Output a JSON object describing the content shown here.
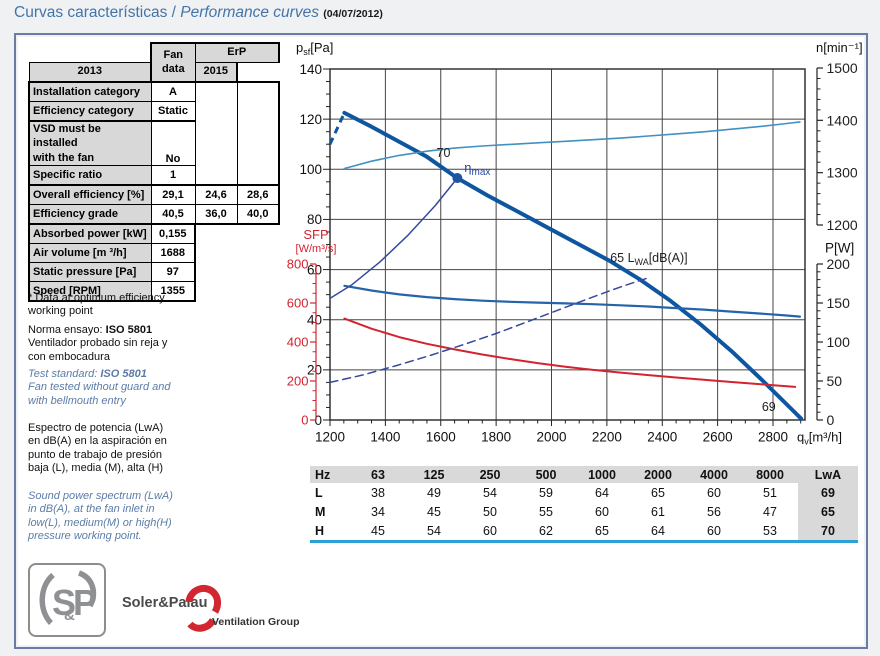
{
  "header": {
    "title_es": "Curvas características /",
    "title_en": "Performance curves",
    "title_date": "(04/07/2012)"
  },
  "fan_table": {
    "header": {
      "fan_line1": "Fan",
      "fan_line2": "data",
      "erp": "ErP",
      "year_2013": "2013",
      "year_2015": "2015"
    },
    "rows": [
      {
        "label": "Installation category",
        "fan": "A"
      },
      {
        "label": "Efficiency category",
        "fan": "Static"
      },
      {
        "label": "VSD must be installed\nwith the fan",
        "fan": "No",
        "tall": true,
        "sep": true
      },
      {
        "label": "Specific ratio",
        "fan": "1"
      },
      {
        "label": "Overall efficiency [%]",
        "fan": "29,1",
        "erp2013": "24,6",
        "erp2015": "28,6",
        "sep": true
      },
      {
        "label": "Efficiency grade",
        "fan": "40,5",
        "erp2013": "36,0",
        "erp2015": "40,0"
      },
      {
        "label": "Absorbed power [kW]",
        "fan": "0,155",
        "sep": true
      },
      {
        "label": "Air volume [m ³/h]",
        "fan": "1688"
      },
      {
        "label": "Static pressure [Pa]",
        "fan": "97"
      },
      {
        "label": "Speed [RPM]",
        "fan": "1355"
      }
    ]
  },
  "notes": [
    {
      "text": "* Data at optimum efficiency\nworking point"
    },
    {
      "pre": "Norma ensayo: ",
      "bold": "ISO 5801",
      "rest": "\nVentilador probado sin reja y\ncon embocadura"
    },
    {
      "pre": "Test standard: ",
      "bold": "ISO 5801",
      "rest": "\nFan tested without guard and\nwith bellmouth entry"
    },
    {
      "text": "Espectro de potencia (LwA)\nen dB(A) en la aspiración en\npunto de trabajo de presión\nbaja (L), media (M), alta (H)"
    },
    {
      "text": "Sound power spectrum (LwA)\nin dB(A), at the fan inlet in\nlow(L), medium(M) or high(H)\npressure working point."
    }
  ],
  "chart_data": {
    "type": "line",
    "x_axis": {
      "title": "qv[m³/h]",
      "title_parts": {
        "main": "q",
        "sub": "v",
        "rest": "[m³/h]"
      },
      "min": 1200,
      "max": 2915,
      "ticks": [
        1200,
        1400,
        1600,
        1800,
        2000,
        2200,
        2400,
        2600,
        2800
      ],
      "minor_step": 50
    },
    "y_axes": {
      "pressure": {
        "title_parts": {
          "main": "p",
          "sub": "sf",
          "rest": "[Pa]"
        },
        "min": 0,
        "max": 140,
        "ticks": [
          140,
          120,
          100,
          80,
          60,
          40,
          20,
          0
        ],
        "minor_step": 5,
        "side": "left",
        "color": "#111111"
      },
      "sfp": {
        "title_line1": "SFP",
        "title_line2": "[W/m³/s]",
        "min": 0,
        "max": 800,
        "ticks": [
          800,
          600,
          400,
          200,
          0
        ],
        "minor_step": 50,
        "side": "left",
        "color": "#d42330"
      },
      "speed": {
        "title": "n[min⁻¹]",
        "min": 1200,
        "max": 1500,
        "ticks": [
          1500,
          1400,
          1300,
          1200
        ],
        "minor_step": 20,
        "side": "right",
        "color": "#111111"
      },
      "power": {
        "title": "P[W]",
        "min": 0,
        "max": 200,
        "ticks": [
          200,
          150,
          100,
          50,
          0
        ],
        "minor_step": 10,
        "side": "right",
        "color": "#111111"
      }
    },
    "series": [
      {
        "name": "static-pressure-curve",
        "axis": "pressure",
        "color": "#0f56a0",
        "width": 4,
        "lead_dashed": [
          [
            1200,
            110
          ],
          [
            1252,
            122.5
          ]
        ],
        "points": [
          [
            1252,
            122.5
          ],
          [
            1350,
            117
          ],
          [
            1450,
            111
          ],
          [
            1550,
            105
          ],
          [
            1660,
            96.5
          ],
          [
            1770,
            89.5
          ],
          [
            1880,
            83
          ],
          [
            1990,
            76.5
          ],
          [
            2100,
            70
          ],
          [
            2210,
            63.5
          ],
          [
            2320,
            56
          ],
          [
            2430,
            47.5
          ],
          [
            2540,
            38
          ],
          [
            2650,
            27.5
          ],
          [
            2760,
            16
          ],
          [
            2870,
            4
          ],
          [
            2902,
            0.5
          ]
        ]
      },
      {
        "name": "speed-curve",
        "axis": "speed",
        "color": "#4191c1",
        "width": 1.6,
        "points": [
          [
            1252,
            1308
          ],
          [
            1350,
            1322
          ],
          [
            1450,
            1333
          ],
          [
            1550,
            1341
          ],
          [
            1650,
            1347
          ],
          [
            1750,
            1351
          ],
          [
            1850,
            1354
          ],
          [
            1950,
            1357
          ],
          [
            2050,
            1360
          ],
          [
            2150,
            1363
          ],
          [
            2250,
            1366
          ],
          [
            2350,
            1370
          ],
          [
            2450,
            1374
          ],
          [
            2550,
            1378
          ],
          [
            2650,
            1383
          ],
          [
            2750,
            1388
          ],
          [
            2850,
            1394
          ],
          [
            2897,
            1397
          ]
        ]
      },
      {
        "name": "power-curve",
        "axis": "power",
        "color": "#2564ab",
        "width": 2.2,
        "points": [
          [
            1252,
            172
          ],
          [
            1350,
            166
          ],
          [
            1450,
            161
          ],
          [
            1550,
            157.5
          ],
          [
            1650,
            155
          ],
          [
            1750,
            153
          ],
          [
            1850,
            151.5
          ],
          [
            1950,
            150.5
          ],
          [
            2050,
            149.5
          ],
          [
            2150,
            148.5
          ],
          [
            2250,
            147
          ],
          [
            2350,
            145.5
          ],
          [
            2450,
            143.5
          ],
          [
            2550,
            141.5
          ],
          [
            2650,
            139
          ],
          [
            2750,
            136.5
          ],
          [
            2850,
            134
          ],
          [
            2897,
            132.5
          ]
        ]
      },
      {
        "name": "sfp-curve",
        "axis": "sfp",
        "color": "#d42330",
        "width": 2,
        "points": [
          [
            1252,
            520
          ],
          [
            1350,
            468
          ],
          [
            1450,
            425
          ],
          [
            1550,
            391
          ],
          [
            1650,
            362
          ],
          [
            1750,
            336
          ],
          [
            1850,
            313
          ],
          [
            1950,
            292
          ],
          [
            2050,
            273
          ],
          [
            2150,
            257
          ],
          [
            2250,
            243
          ],
          [
            2350,
            230
          ],
          [
            2450,
            218
          ],
          [
            2550,
            206
          ],
          [
            2650,
            195
          ],
          [
            2750,
            184
          ],
          [
            2850,
            173
          ],
          [
            2880,
            170
          ]
        ]
      },
      {
        "name": "bep-line",
        "axis": "pressure",
        "color": "#35499c",
        "width": 1.5,
        "points": [
          [
            1200,
            48.5
          ],
          [
            1280,
            54
          ],
          [
            1380,
            63
          ],
          [
            1480,
            73.5
          ],
          [
            1580,
            85.5
          ],
          [
            1660,
            96.5
          ]
        ]
      },
      {
        "name": "system-parabola",
        "axis": "pressure",
        "color": "#35499c",
        "width": 1.5,
        "dash": "8 5",
        "points": [
          [
            1200,
            15
          ],
          [
            1320,
            18
          ],
          [
            1440,
            21.7
          ],
          [
            1560,
            25.7
          ],
          [
            1680,
            30
          ],
          [
            1800,
            34.5
          ],
          [
            1920,
            39.5
          ],
          [
            2040,
            44.5
          ],
          [
            2160,
            49.5
          ],
          [
            2260,
            53.5
          ],
          [
            2345,
            56.5
          ]
        ]
      }
    ],
    "bep_point": {
      "q": 1660,
      "pa": 96.5,
      "color": "#1c55a2"
    },
    "annotations": [
      {
        "name": "lwa-high-label",
        "text": "70",
        "q": 1610,
        "pa": 105,
        "anchor": "middle",
        "color": "#222222"
      },
      {
        "name": "eta-max-label",
        "parts": {
          "main": "η",
          "sub": "max"
        },
        "q": 1685,
        "pa": 99,
        "anchor": "start",
        "color": "#2b4a9b"
      },
      {
        "name": "lwa-medium-label",
        "parts": {
          "pre": "65 ",
          "main": "L",
          "sub": "WA",
          "rest": "[dB(A)]"
        },
        "q": 2212,
        "pa": 63,
        "anchor": "start",
        "color": "#222222"
      },
      {
        "name": "lwa-low-label",
        "text": "69",
        "q": 2785,
        "pa": 3.5,
        "anchor": "middle",
        "color": "#222222"
      }
    ]
  },
  "spectrum_table": {
    "col_headers": [
      "Hz",
      "63",
      "125",
      "250",
      "500",
      "1000",
      "2000",
      "4000",
      "8000",
      "LwA"
    ],
    "rows": [
      {
        "label": "L",
        "values": [
          "38",
          "49",
          "54",
          "59",
          "64",
          "65",
          "60",
          "51"
        ],
        "lwa": "69"
      },
      {
        "label": "M",
        "values": [
          "34",
          "45",
          "50",
          "55",
          "60",
          "61",
          "56",
          "47"
        ],
        "lwa": "65"
      },
      {
        "label": "H",
        "values": [
          "45",
          "54",
          "60",
          "62",
          "65",
          "64",
          "60",
          "53"
        ],
        "lwa": "70"
      }
    ]
  },
  "footer": {
    "logo_s": "S",
    "logo_amp": "&",
    "logo_p": "P",
    "brand": "Soler&Palau",
    "group": "Ventilation Group"
  }
}
